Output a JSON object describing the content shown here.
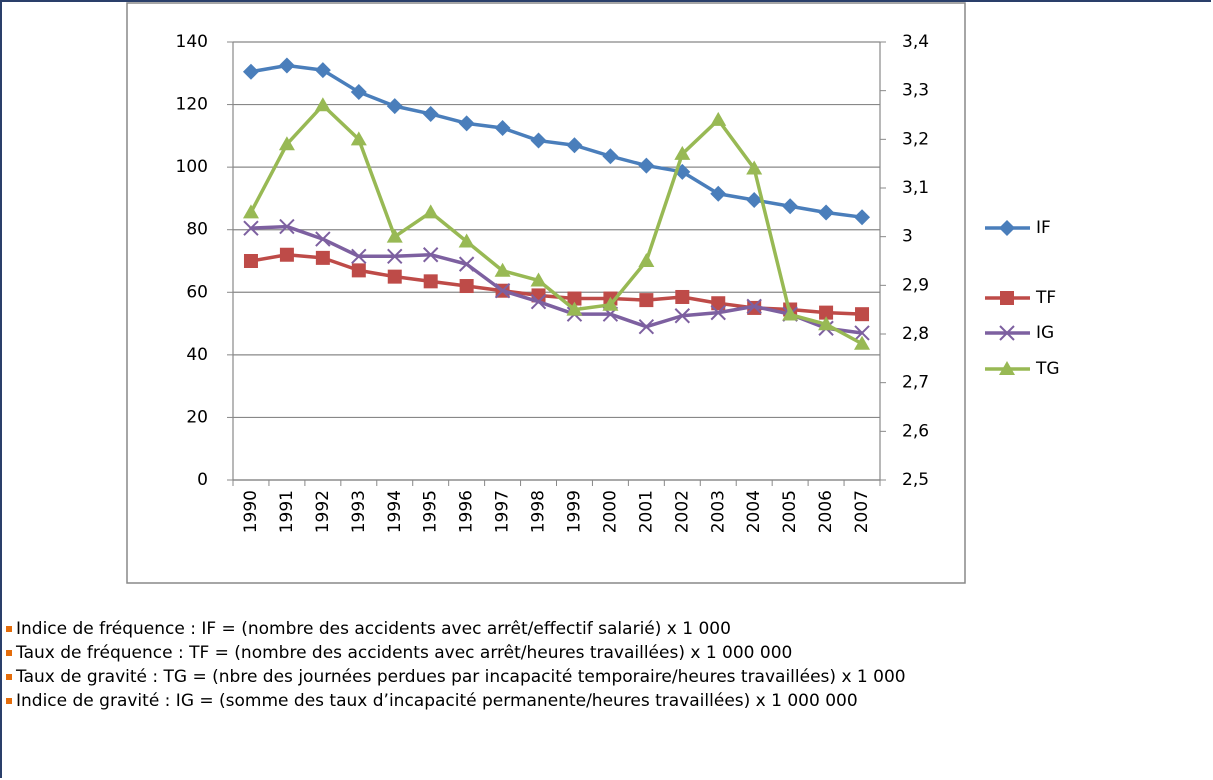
{
  "chart_data": {
    "type": "line",
    "categories": [
      "1990",
      "1991",
      "1992",
      "1993",
      "1994",
      "1995",
      "1996",
      "1997",
      "1998",
      "1999",
      "2000",
      "2001",
      "2002",
      "2003",
      "2004",
      "2005",
      "2006",
      "2007"
    ],
    "series": [
      {
        "name": "IF",
        "color": "#4a7ebb",
        "marker": "diamond",
        "values": [
          130.5,
          132.5,
          131,
          124,
          119.5,
          117,
          114,
          112.5,
          108.5,
          107,
          103.5,
          100.5,
          98.5,
          91.5,
          89.5,
          87.5,
          85.5,
          84
        ]
      },
      {
        "name": "TF",
        "color": "#be4b48",
        "marker": "square",
        "values": [
          70,
          72,
          71,
          67,
          65,
          63.5,
          62,
          60.5,
          59,
          58,
          58,
          57.5,
          58.5,
          56.5,
          55,
          54.5,
          53.5,
          53
        ]
      },
      {
        "name": "IG",
        "color": "#7d60a0",
        "marker": "x",
        "values": [
          80.5,
          81,
          77,
          71.5,
          71.5,
          72,
          69,
          60.5,
          57,
          53,
          53,
          49,
          52.5,
          53.5,
          55.5,
          53,
          48.5,
          47
        ]
      },
      {
        "name": "TG",
        "color": "#98b954",
        "marker": "triangle",
        "axis": "y2",
        "values": [
          3.05,
          3.19,
          3.27,
          3.2,
          3.0,
          3.05,
          2.99,
          2.93,
          2.91,
          2.85,
          2.86,
          2.95,
          3.17,
          3.24,
          3.14,
          2.84,
          2.82,
          2.78
        ]
      }
    ],
    "ylim": [
      0,
      140
    ],
    "yticks": [
      0,
      20,
      40,
      60,
      80,
      100,
      120,
      140
    ],
    "y2lim": [
      2.5,
      3.4
    ],
    "y2ticks": [
      {
        "value": 2.5,
        "label": "2,5"
      },
      {
        "value": 2.6,
        "label": "2,6"
      },
      {
        "value": 2.7,
        "label": "2,7"
      },
      {
        "value": 2.8,
        "label": "2,8"
      },
      {
        "value": 2.9,
        "label": "2,9"
      },
      3,
      {
        "value": 3.1,
        "label": "3,1"
      },
      {
        "value": 3.2,
        "label": "3,2"
      },
      {
        "value": 3.3,
        "label": "3,3"
      },
      {
        "value": 3.4,
        "label": "3,4"
      }
    ],
    "grid": true,
    "legend": "right"
  },
  "notes": [
    "Indice de fréquence : IF = (nombre des accidents avec arrêt/effectif salarié) x 1 000",
    "Taux de fréquence : TF = (nombre des accidents avec arrêt/heures travaillées) x 1 000 000",
    "Taux de gravité : TG = (nbre des journées perdues par incapacité temporaire/heures travaillées) x 1 000",
    "Indice de gravité : IG = (somme des taux d’incapacité permanente/heures travaillées) x 1 000 000"
  ]
}
